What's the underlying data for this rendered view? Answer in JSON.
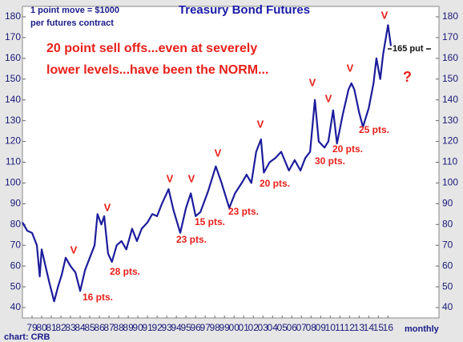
{
  "chart_data": {
    "type": "line",
    "title": "Treasury Bond Futures",
    "subtitle_lines": [
      "1 point move = $1000",
      "per futures contract"
    ],
    "headline_lines": [
      "20 point sell offs...even at severely",
      "lower levels...have been the NORM..."
    ],
    "put_label": "165 put",
    "question_mark": "?",
    "frequency_label": "monthly",
    "source": "chart: CRB",
    "peak_marks": [
      "V",
      "V",
      "V",
      "V",
      "V",
      "V",
      "V",
      "V",
      "V",
      "V"
    ],
    "selloff_labels": [
      "16 pts.",
      "28 pts.",
      "23 pts.",
      "15 pts.",
      "23 pts.",
      "20 pts.",
      "30 pts.",
      "20 pts.",
      "25 pts."
    ],
    "color": "#1c1c9c",
    "x": [
      1978.5,
      1979.0,
      1979.5,
      1980.0,
      1980.3,
      1980.5,
      1980.8,
      1981.3,
      1981.8,
      1982.2,
      1982.6,
      1983.0,
      1983.5,
      1984.0,
      1984.5,
      1985.0,
      1985.5,
      1986.0,
      1986.3,
      1986.7,
      1987.0,
      1987.4,
      1987.8,
      1988.3,
      1988.8,
      1989.3,
      1989.9,
      1990.4,
      1990.9,
      1991.5,
      1992.0,
      1992.5,
      1993.0,
      1993.7,
      1994.2,
      1994.9,
      1995.5,
      1996.0,
      1996.5,
      1997.0,
      1997.8,
      1998.6,
      1999.2,
      2000.0,
      2000.6,
      2001.3,
      2001.8,
      2002.3,
      2002.8,
      2003.3,
      2003.6,
      2004.2,
      2004.8,
      2005.4,
      2006.2,
      2006.8,
      2007.4,
      2007.9,
      2008.4,
      2008.9,
      2009.3,
      2009.9,
      2010.3,
      2010.8,
      2011.2,
      2011.8,
      2012.4,
      2012.7,
      2013.0,
      2013.5,
      2013.9,
      2014.5,
      2015.0,
      2015.3,
      2015.7,
      2016.0,
      2016.5,
      2016.8
    ],
    "values": [
      81,
      77,
      76,
      70,
      55,
      68,
      62,
      52,
      43,
      50,
      56,
      64,
      60,
      57,
      48,
      58,
      64,
      70,
      85,
      80,
      84,
      66,
      62,
      70,
      72,
      68,
      78,
      72,
      78,
      81,
      85,
      84,
      90,
      97,
      87,
      76,
      88,
      95,
      84,
      86,
      96,
      108,
      100,
      88,
      95,
      100,
      104,
      100,
      115,
      121,
      105,
      110,
      112,
      115,
      106,
      111,
      106,
      112,
      115,
      140,
      120,
      117,
      120,
      135,
      119,
      133,
      145,
      148,
      145,
      134,
      127,
      136,
      148,
      160,
      150,
      162,
      176,
      166
    ],
    "xlim": [
      1978.5,
      2021.8
    ],
    "xticks": [
      {
        "value": 1979.5,
        "label": "79"
      },
      {
        "value": 1980.5,
        "label": "80"
      },
      {
        "value": 1981.5,
        "label": "81"
      },
      {
        "value": 1982.5,
        "label": "82"
      },
      {
        "value": 1983.5,
        "label": "83"
      },
      {
        "value": 1984.5,
        "label": "84"
      },
      {
        "value": 1985.5,
        "label": "85"
      },
      {
        "value": 1986.5,
        "label": "86"
      },
      {
        "value": 1987.5,
        "label": "87"
      },
      {
        "value": 1988.5,
        "label": "88"
      },
      {
        "value": 1989.5,
        "label": "89"
      },
      {
        "value": 1990.5,
        "label": "90"
      },
      {
        "value": 1991.5,
        "label": "91"
      },
      {
        "value": 1992.5,
        "label": "92"
      },
      {
        "value": 1993.5,
        "label": "93"
      },
      {
        "value": 1994.5,
        "label": "94"
      },
      {
        "value": 1995.5,
        "label": "95"
      },
      {
        "value": 1996.5,
        "label": "96"
      },
      {
        "value": 1997.5,
        "label": "97"
      },
      {
        "value": 1998.5,
        "label": "98"
      },
      {
        "value": 1999.5,
        "label": "99"
      },
      {
        "value": 2000.5,
        "label": "00"
      },
      {
        "value": 2001.5,
        "label": "01"
      },
      {
        "value": 2002.5,
        "label": "02"
      },
      {
        "value": 2003.5,
        "label": "03"
      },
      {
        "value": 2004.5,
        "label": "04"
      },
      {
        "value": 2005.5,
        "label": "05"
      },
      {
        "value": 2006.5,
        "label": "06"
      },
      {
        "value": 2007.5,
        "label": "07"
      },
      {
        "value": 2008.5,
        "label": "08"
      },
      {
        "value": 2009.5,
        "label": "09"
      },
      {
        "value": 2010.5,
        "label": "10"
      },
      {
        "value": 2011.5,
        "label": "11"
      },
      {
        "value": 2012.5,
        "label": "12"
      },
      {
        "value": 2013.5,
        "label": "13"
      },
      {
        "value": 2014.5,
        "label": "14"
      },
      {
        "value": 2015.5,
        "label": "15"
      },
      {
        "value": 2016.5,
        "label": "16"
      }
    ],
    "ylim": [
      35,
      185
    ],
    "yticks": [
      40,
      50,
      60,
      70,
      80,
      90,
      100,
      110,
      120,
      130,
      140,
      150,
      160,
      170,
      180
    ]
  }
}
